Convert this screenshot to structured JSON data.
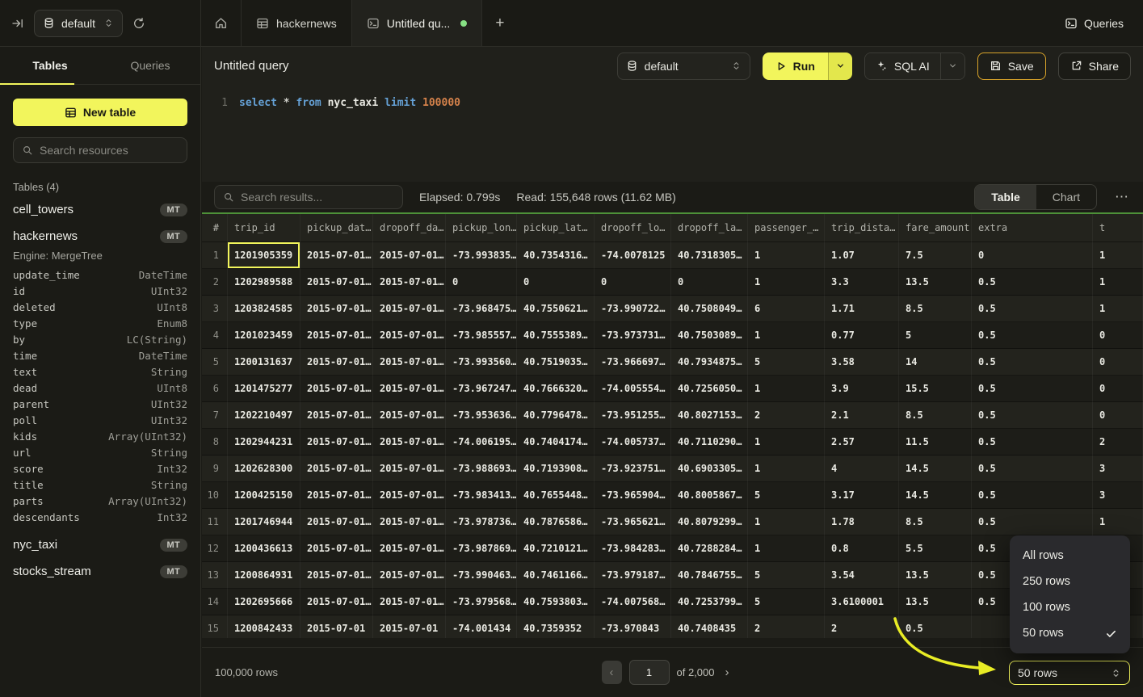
{
  "colors": {
    "accent": "#f2f55c",
    "gold": "#d9a42a",
    "green": "#4d9038",
    "dot": "#87e184",
    "arrow": "#e8ec25"
  },
  "topbar": {
    "database_selector": "default",
    "tabs": [
      {
        "label": "hackernews"
      },
      {
        "label": "Untitled qu..."
      }
    ],
    "queries_label": "Queries"
  },
  "sidebar": {
    "tab_tables": "Tables",
    "tab_queries": "Queries",
    "new_table_label": "New table",
    "search_placeholder": "Search resources",
    "section_label": "Tables (4)",
    "tables": [
      {
        "name": "cell_towers",
        "badge": "MT"
      },
      {
        "name": "hackernews",
        "badge": "MT",
        "engine": "Engine: MergeTree",
        "columns": [
          [
            "update_time",
            "DateTime"
          ],
          [
            "id",
            "UInt32"
          ],
          [
            "deleted",
            "UInt8"
          ],
          [
            "type",
            "Enum8"
          ],
          [
            "by",
            "LC(String)"
          ],
          [
            "time",
            "DateTime"
          ],
          [
            "text",
            "String"
          ],
          [
            "dead",
            "UInt8"
          ],
          [
            "parent",
            "UInt32"
          ],
          [
            "poll",
            "UInt32"
          ],
          [
            "kids",
            "Array(UInt32)"
          ],
          [
            "url",
            "String"
          ],
          [
            "score",
            "Int32"
          ],
          [
            "title",
            "String"
          ],
          [
            "parts",
            "Array(UInt32)"
          ],
          [
            "descendants",
            "Int32"
          ]
        ]
      },
      {
        "name": "nyc_taxi",
        "badge": "MT"
      },
      {
        "name": "stocks_stream",
        "badge": "MT"
      }
    ]
  },
  "query": {
    "title": "Untitled query",
    "database_selector": "default",
    "run_label": "Run",
    "sql_ai_label": "SQL AI",
    "save_label": "Save",
    "share_label": "Share"
  },
  "editor": {
    "line_number": "1",
    "tokens": [
      [
        "select",
        "kw"
      ],
      [
        " ",
        "op"
      ],
      [
        "*",
        "op"
      ],
      [
        " ",
        "op"
      ],
      [
        "from",
        "kw"
      ],
      [
        " ",
        "op"
      ],
      [
        "nyc_taxi",
        "id"
      ],
      [
        " ",
        "op"
      ],
      [
        "limit",
        "kw"
      ],
      [
        " ",
        "op"
      ],
      [
        "100000",
        "num"
      ]
    ]
  },
  "results": {
    "search_placeholder": "Search results...",
    "elapsed": "Elapsed: 0.799s",
    "read": "Read: 155,648 rows (11.62 MB)",
    "view_table_label": "Table",
    "view_chart_label": "Chart",
    "more_label": "⋯",
    "table": {
      "headers": [
        "#",
        "trip_id",
        "pickup_dat…",
        "dropoff_da…",
        "pickup_lon…",
        "pickup_lat…",
        "dropoff_lo…",
        "dropoff_la…",
        "passenger_…",
        "trip_dista…",
        "fare_amount",
        "extra",
        "t"
      ],
      "selected_cell": {
        "row": 1,
        "column": "trip_id"
      },
      "rows": [
        [
          "1201905359",
          "2015-07-01…",
          "2015-07-01…",
          "-73.993835…",
          "40.7354316…",
          "-74.0078125",
          "40.7318305…",
          "1",
          "1.07",
          "7.5",
          "0",
          "1"
        ],
        [
          "1202989588",
          "2015-07-01…",
          "2015-07-01…",
          "0",
          "0",
          "0",
          "0",
          "1",
          "3.3",
          "13.5",
          "0.5",
          "1"
        ],
        [
          "1203824585",
          "2015-07-01…",
          "2015-07-01…",
          "-73.968475…",
          "40.7550621…",
          "-73.990722…",
          "40.7508049…",
          "6",
          "1.71",
          "8.5",
          "0.5",
          "1"
        ],
        [
          "1201023459",
          "2015-07-01…",
          "2015-07-01…",
          "-73.985557…",
          "40.7555389…",
          "-73.973731…",
          "40.7503089…",
          "1",
          "0.77",
          "5",
          "0.5",
          "0"
        ],
        [
          "1200131637",
          "2015-07-01…",
          "2015-07-01…",
          "-73.993560…",
          "40.7519035…",
          "-73.966697…",
          "40.7934875…",
          "5",
          "3.58",
          "14",
          "0.5",
          "0"
        ],
        [
          "1201475277",
          "2015-07-01…",
          "2015-07-01…",
          "-73.967247…",
          "40.7666320…",
          "-74.005554…",
          "40.7256050…",
          "1",
          "3.9",
          "15.5",
          "0.5",
          "0"
        ],
        [
          "1202210497",
          "2015-07-01…",
          "2015-07-01…",
          "-73.953636…",
          "40.7796478…",
          "-73.951255…",
          "40.8027153…",
          "2",
          "2.1",
          "8.5",
          "0.5",
          "0"
        ],
        [
          "1202944231",
          "2015-07-01…",
          "2015-07-01…",
          "-74.006195…",
          "40.7404174…",
          "-74.005737…",
          "40.7110290…",
          "1",
          "2.57",
          "11.5",
          "0.5",
          "2"
        ],
        [
          "1202628300",
          "2015-07-01…",
          "2015-07-01…",
          "-73.988693…",
          "40.7193908…",
          "-73.923751…",
          "40.6903305…",
          "1",
          "4",
          "14.5",
          "0.5",
          "3"
        ],
        [
          "1200425150",
          "2015-07-01…",
          "2015-07-01…",
          "-73.983413…",
          "40.7655448…",
          "-73.965904…",
          "40.8005867…",
          "5",
          "3.17",
          "14.5",
          "0.5",
          "3"
        ],
        [
          "1201746944",
          "2015-07-01…",
          "2015-07-01…",
          "-73.978736…",
          "40.7876586…",
          "-73.965621…",
          "40.8079299…",
          "1",
          "1.78",
          "8.5",
          "0.5",
          "1"
        ],
        [
          "1200436613",
          "2015-07-01…",
          "2015-07-01…",
          "-73.987869…",
          "40.7210121…",
          "-73.984283…",
          "40.7288284…",
          "1",
          "0.8",
          "5.5",
          "0.5",
          ""
        ],
        [
          "1200864931",
          "2015-07-01…",
          "2015-07-01…",
          "-73.990463…",
          "40.7461166…",
          "-73.979187…",
          "40.7846755…",
          "5",
          "3.54",
          "13.5",
          "0.5",
          ""
        ],
        [
          "1202695666",
          "2015-07-01…",
          "2015-07-01…",
          "-73.979568…",
          "40.7593803…",
          "-74.007568…",
          "40.7253799…",
          "5",
          "3.6100001",
          "13.5",
          "0.5",
          ""
        ],
        [
          "1200842433",
          "2015-07-01",
          "2015-07-01",
          "-74.001434",
          "40.7359352",
          "-73.970843",
          "40.7408435",
          "2",
          "2",
          "0.5",
          "",
          ""
        ]
      ]
    },
    "footer": {
      "row_count": "100,000 rows",
      "prev_label": "‹",
      "page_value": "1",
      "page_of": "of 2,000",
      "next_label": "›"
    },
    "page_size": {
      "value": "50 rows",
      "options": [
        "All rows",
        "250 rows",
        "100 rows",
        "50 rows"
      ],
      "selected": "50 rows"
    }
  }
}
